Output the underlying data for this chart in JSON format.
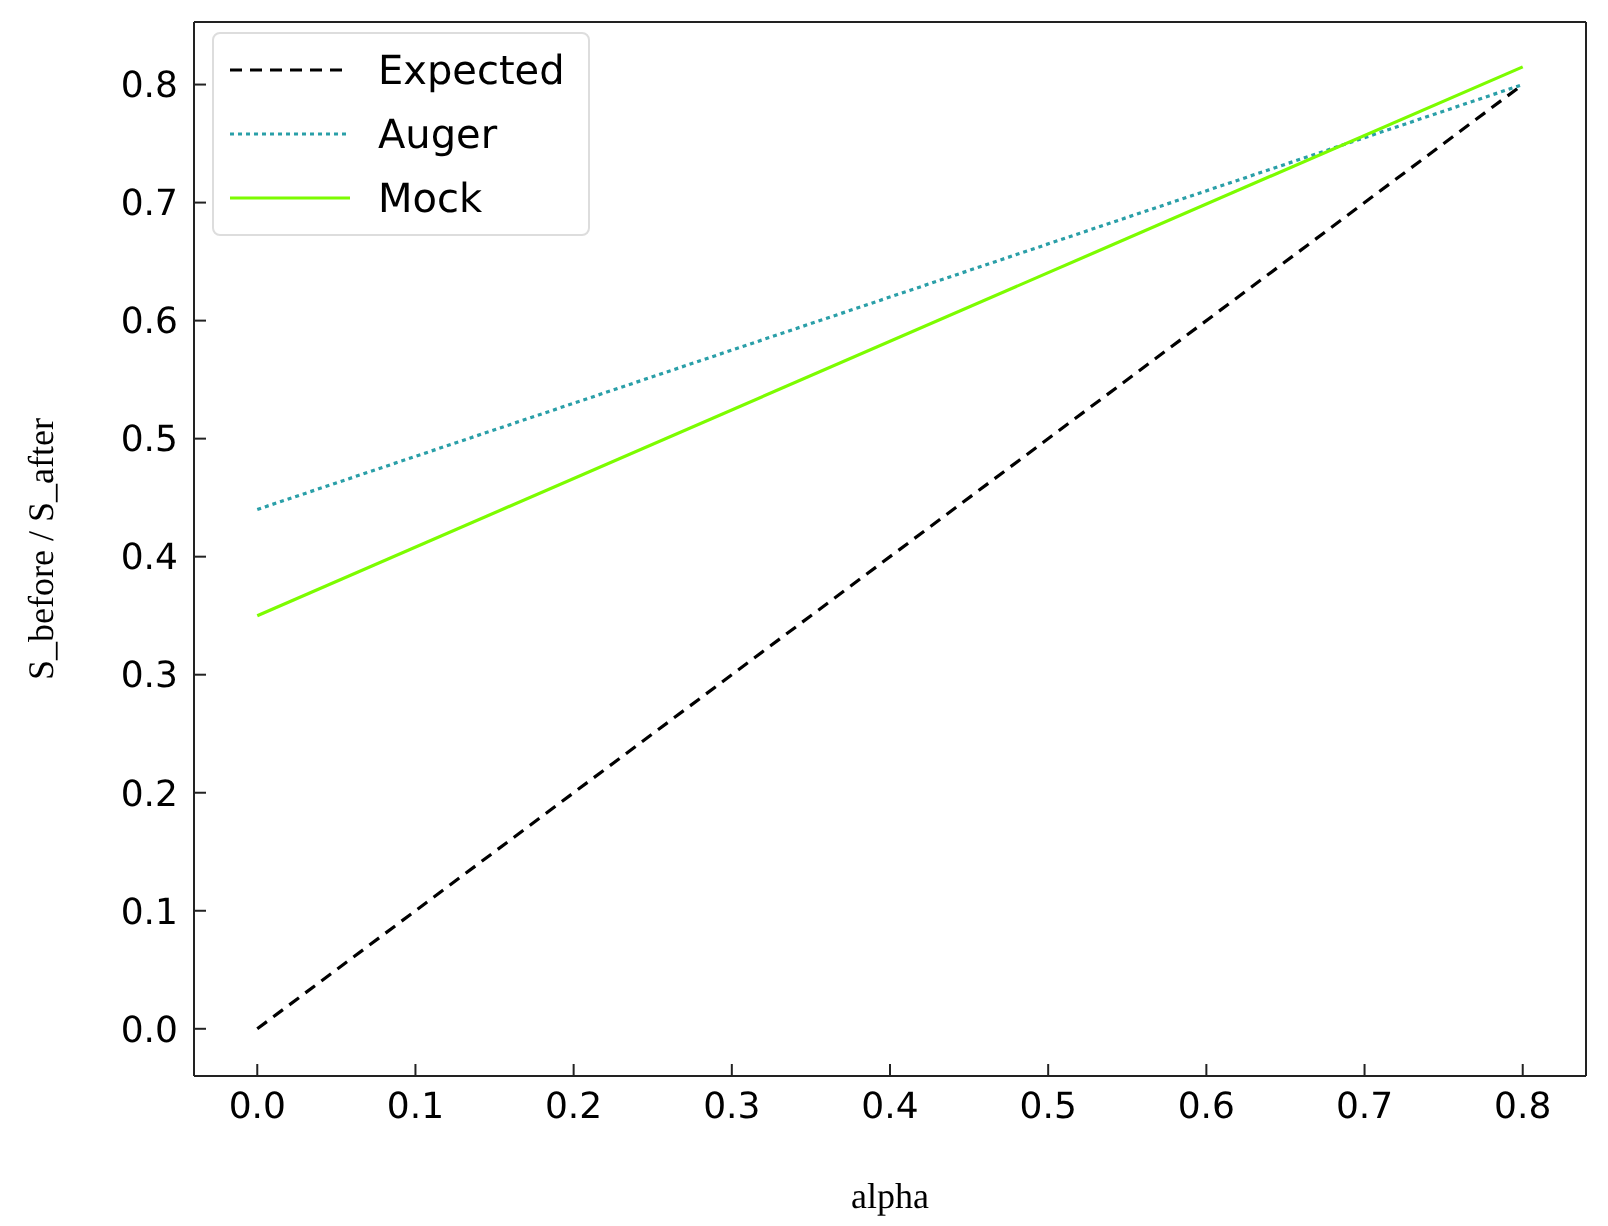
{
  "chart_data": {
    "type": "line",
    "xlabel": "alpha",
    "ylabel": "S_before / S_after",
    "xlim": [
      -0.04,
      0.84
    ],
    "xticks": [
      {
        "value": 0,
        "label": "0.0"
      },
      {
        "value": 0.1,
        "label": "0.1"
      },
      {
        "value": 0.2,
        "label": "0.2"
      },
      {
        "value": 0.3,
        "label": "0.3"
      },
      {
        "value": 0.4,
        "label": "0.4"
      },
      {
        "value": 0.5,
        "label": "0.5"
      },
      {
        "value": 0.6,
        "label": "0.6"
      },
      {
        "value": 0.7,
        "label": "0.7"
      },
      {
        "value": 0.8,
        "label": "0.8"
      }
    ],
    "ylim": [
      -0.04,
      0.853
    ],
    "yticks": [
      {
        "value": 0,
        "label": "0.0"
      },
      {
        "value": 0.1,
        "label": "0.1"
      },
      {
        "value": 0.2,
        "label": "0.2"
      },
      {
        "value": 0.3,
        "label": "0.3"
      },
      {
        "value": 0.4,
        "label": "0.4"
      },
      {
        "value": 0.5,
        "label": "0.5"
      },
      {
        "value": 0.6,
        "label": "0.6"
      },
      {
        "value": 0.7,
        "label": "0.7"
      },
      {
        "value": 0.8,
        "label": "0.8"
      }
    ],
    "x": [
      0,
      0.8
    ],
    "grid": false,
    "legend": "top left",
    "marker": "none",
    "series": [
      {
        "name": "Expected",
        "color": "#000000",
        "line_style": "dashed",
        "values": [
          0,
          0.8
        ]
      },
      {
        "name": "Auger",
        "color": "#2a9fa8",
        "line_style": "dotted",
        "values": [
          0.44,
          0.8
        ]
      },
      {
        "name": "Mock",
        "color": "#7cfc00",
        "line_style": "solid",
        "values": [
          0.35,
          0.815
        ]
      }
    ]
  }
}
